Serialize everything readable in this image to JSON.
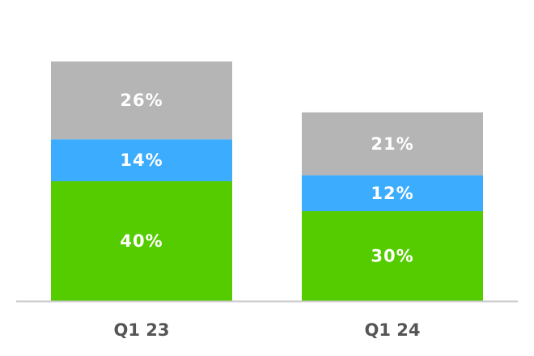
{
  "chart_data": {
    "type": "bar",
    "stacked": true,
    "categories": [
      "Q1 23",
      "Q1 24"
    ],
    "series": [
      {
        "values": [
          40,
          30
        ],
        "labels": [
          "40%",
          "30%"
        ],
        "color": "#55cc00"
      },
      {
        "values": [
          14,
          12
        ],
        "labels": [
          "14%",
          "12%"
        ],
        "color": "#3cacff"
      },
      {
        "values": [
          26,
          21
        ],
        "labels": [
          "26%",
          "21%"
        ],
        "color": "#b5b5b5"
      }
    ],
    "ylim": [
      0,
      80
    ],
    "grid": false,
    "legend": "none",
    "axis_color": "#c8c8c8"
  }
}
